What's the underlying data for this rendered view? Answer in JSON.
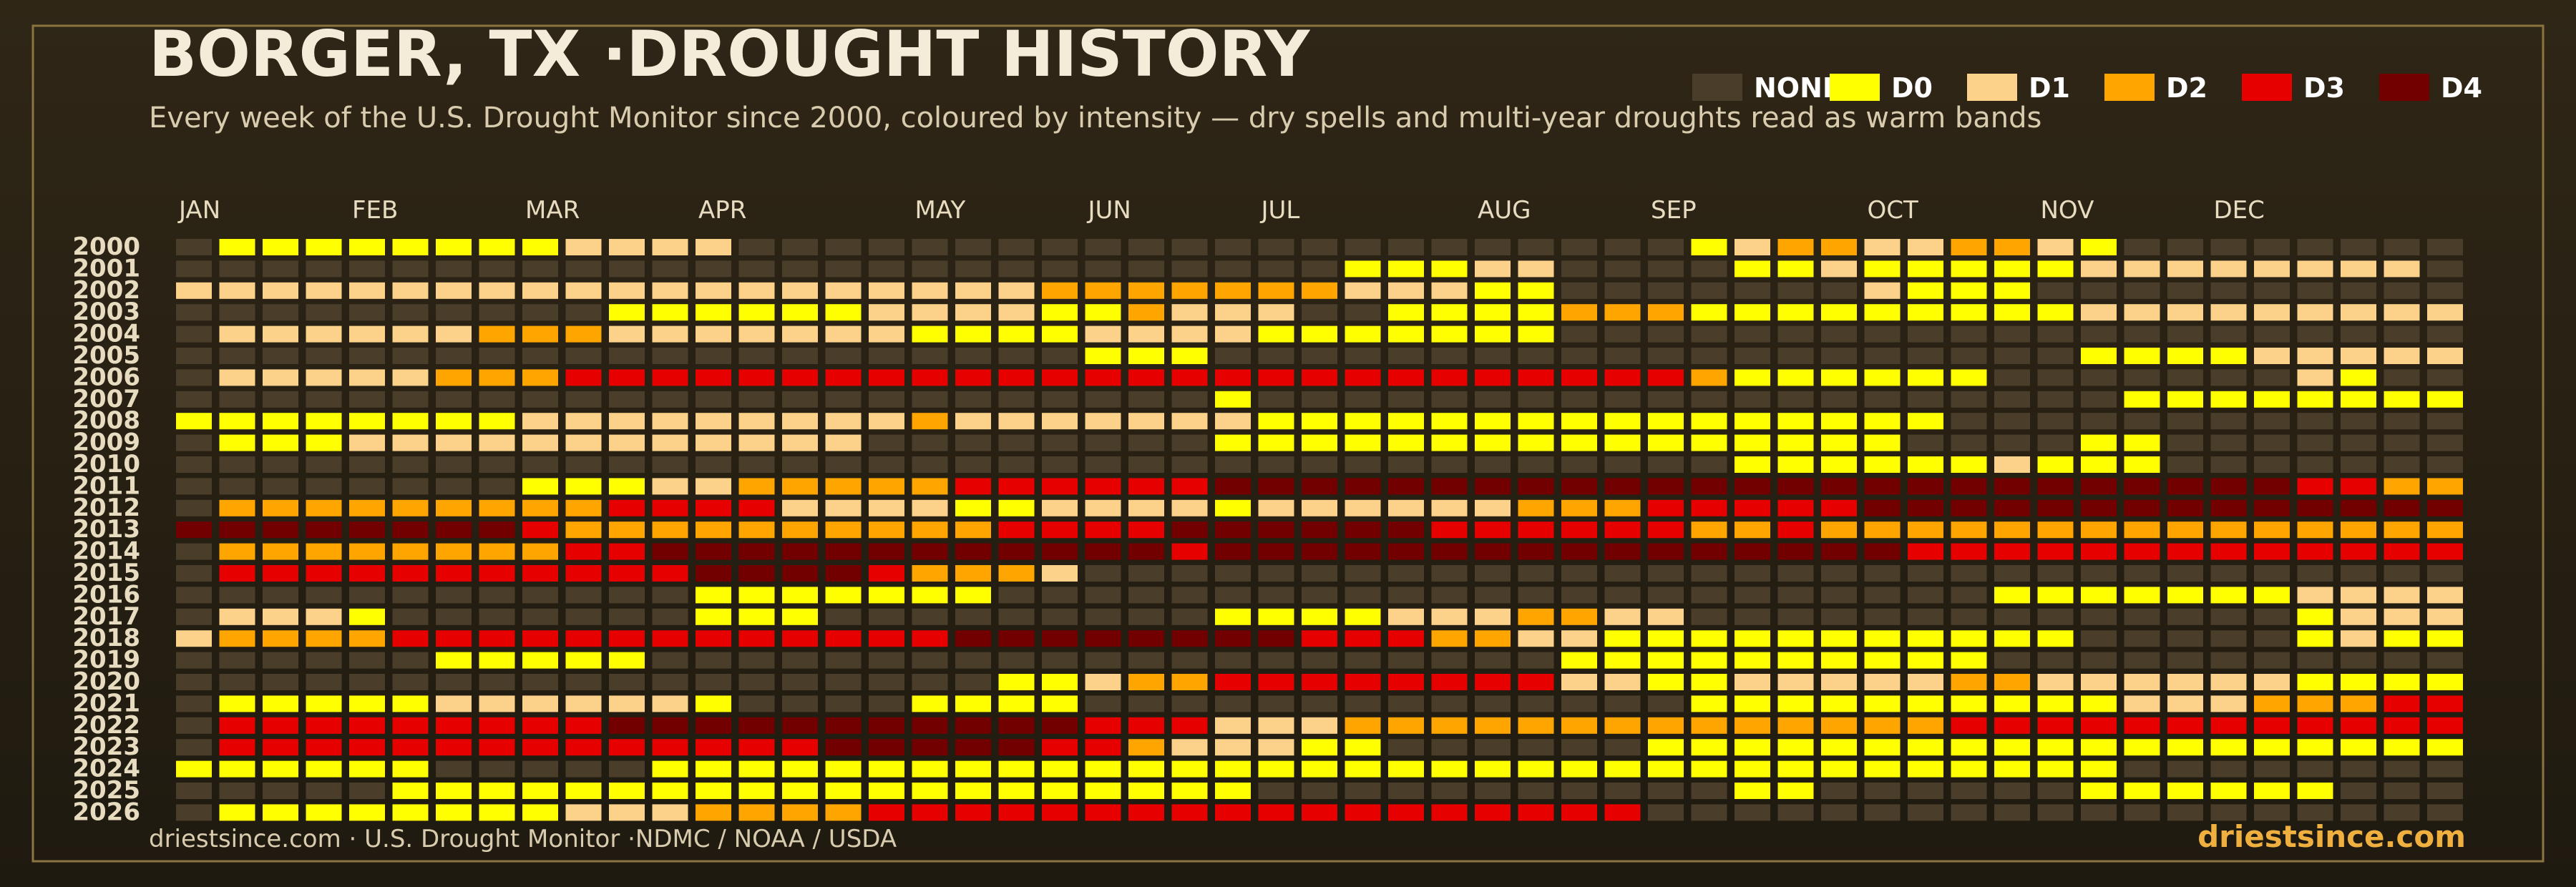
{
  "chart_data": {
    "type": "heatmap",
    "title": "BORGER, TX ·DROUGHT HISTORY",
    "subtitle": "Every week of the U.S. Drought Monitor since 2000, coloured by intensity — dry spells and multi-year droughts read as warm bands",
    "footer": "driestsince.com  · U.S. Drought Monitor ·NDMC / NOAA / USDA",
    "brand": "driestsince.com",
    "levels": [
      {
        "name": "NONE",
        "color": "#4a3e2a"
      },
      {
        "name": "D0",
        "color": "#ffff00"
      },
      {
        "name": "D1",
        "color": "#fcd28a"
      },
      {
        "name": "D2",
        "color": "#ffa500"
      },
      {
        "name": "D3",
        "color": "#e60000"
      },
      {
        "name": "D4",
        "color": "#730000"
      }
    ],
    "months": [
      "JAN",
      "FEB",
      "MAR",
      "APR",
      "MAY",
      "JUN",
      "JUL",
      "AUG",
      "SEP",
      "OCT",
      "NOV",
      "DEC"
    ],
    "years": [
      2000,
      2001,
      2002,
      2003,
      2004,
      2005,
      2006,
      2007,
      2008,
      2009,
      2010,
      2011,
      2012,
      2013,
      2014,
      2015,
      2016,
      2017,
      2018,
      2019,
      2020,
      2021,
      2022,
      2023,
      2024,
      2025,
      2026
    ],
    "values": [
      [
        0,
        1,
        1,
        1,
        1,
        1,
        1,
        1,
        1,
        2,
        2,
        2,
        2,
        0,
        0,
        0,
        0,
        0,
        0,
        0,
        0,
        0,
        0,
        0,
        0,
        0,
        0,
        0,
        0,
        0,
        0,
        0,
        0,
        0,
        0,
        1,
        2,
        3,
        3,
        2,
        2,
        3,
        3,
        2,
        1,
        0,
        0,
        0,
        0,
        0,
        0,
        0,
        0
      ],
      [
        0,
        0,
        0,
        0,
        0,
        0,
        0,
        0,
        0,
        0,
        0,
        0,
        0,
        0,
        0,
        0,
        0,
        0,
        0,
        0,
        0,
        0,
        0,
        0,
        0,
        0,
        0,
        1,
        1,
        1,
        2,
        2,
        0,
        0,
        0,
        0,
        1,
        1,
        2,
        1,
        1,
        1,
        1,
        1,
        2,
        2,
        2,
        2,
        2,
        2,
        2,
        2,
        0
      ],
      [
        2,
        2,
        2,
        2,
        2,
        2,
        2,
        2,
        2,
        2,
        2,
        2,
        2,
        2,
        2,
        2,
        2,
        2,
        2,
        2,
        3,
        3,
        3,
        3,
        3,
        3,
        3,
        2,
        2,
        2,
        1,
        1,
        0,
        0,
        0,
        0,
        0,
        0,
        0,
        2,
        1,
        1,
        1,
        0,
        0,
        0,
        0,
        0,
        0,
        0,
        0,
        0,
        0
      ],
      [
        0,
        0,
        0,
        0,
        0,
        0,
        0,
        0,
        0,
        0,
        1,
        1,
        1,
        1,
        1,
        1,
        2,
        2,
        2,
        2,
        1,
        1,
        3,
        2,
        2,
        2,
        0,
        0,
        1,
        1,
        1,
        1,
        3,
        3,
        3,
        1,
        1,
        1,
        1,
        1,
        1,
        1,
        1,
        1,
        2,
        2,
        2,
        2,
        2,
        2,
        2,
        2,
        2
      ],
      [
        0,
        2,
        2,
        2,
        2,
        2,
        2,
        3,
        3,
        3,
        2,
        2,
        2,
        2,
        2,
        2,
        2,
        1,
        1,
        1,
        1,
        2,
        2,
        2,
        2,
        1,
        1,
        1,
        1,
        1,
        1,
        1,
        0,
        0,
        0,
        0,
        0,
        0,
        0,
        0,
        0,
        0,
        0,
        0,
        0,
        0,
        0,
        0,
        0,
        0,
        0,
        0,
        0
      ],
      [
        0,
        0,
        0,
        0,
        0,
        0,
        0,
        0,
        0,
        0,
        0,
        0,
        0,
        0,
        0,
        0,
        0,
        0,
        0,
        0,
        0,
        1,
        1,
        1,
        0,
        0,
        0,
        0,
        0,
        0,
        0,
        0,
        0,
        0,
        0,
        0,
        0,
        0,
        0,
        0,
        0,
        0,
        0,
        0,
        1,
        1,
        1,
        1,
        2,
        2,
        2,
        2,
        2
      ],
      [
        0,
        2,
        2,
        2,
        2,
        2,
        3,
        3,
        3,
        4,
        4,
        4,
        4,
        4,
        4,
        4,
        4,
        4,
        4,
        4,
        4,
        4,
        4,
        4,
        4,
        4,
        4,
        4,
        4,
        4,
        4,
        4,
        4,
        4,
        4,
        3,
        1,
        1,
        1,
        1,
        1,
        1,
        0,
        0,
        0,
        0,
        0,
        0,
        0,
        2,
        1,
        0,
        0
      ],
      [
        0,
        0,
        0,
        0,
        0,
        0,
        0,
        0,
        0,
        0,
        0,
        0,
        0,
        0,
        0,
        0,
        0,
        0,
        0,
        0,
        0,
        0,
        0,
        0,
        1,
        0,
        0,
        0,
        0,
        0,
        0,
        0,
        0,
        0,
        0,
        0,
        0,
        0,
        0,
        0,
        0,
        0,
        0,
        0,
        0,
        1,
        1,
        1,
        1,
        1,
        1,
        1,
        1
      ],
      [
        1,
        1,
        1,
        1,
        1,
        1,
        1,
        1,
        2,
        2,
        2,
        2,
        2,
        2,
        2,
        2,
        2,
        3,
        2,
        2,
        2,
        2,
        2,
        2,
        2,
        1,
        1,
        1,
        1,
        1,
        1,
        1,
        1,
        1,
        1,
        1,
        1,
        1,
        1,
        1,
        1,
        0,
        0,
        0,
        0,
        0,
        0,
        0,
        0,
        0,
        0,
        0,
        0
      ],
      [
        0,
        1,
        1,
        1,
        2,
        2,
        2,
        2,
        2,
        2,
        2,
        2,
        2,
        2,
        2,
        2,
        0,
        0,
        0,
        0,
        0,
        0,
        0,
        0,
        1,
        1,
        1,
        1,
        1,
        1,
        1,
        1,
        1,
        1,
        1,
        1,
        1,
        1,
        1,
        1,
        0,
        0,
        0,
        0,
        1,
        1,
        0,
        0,
        0,
        0,
        0,
        0,
        0
      ],
      [
        0,
        0,
        0,
        0,
        0,
        0,
        0,
        0,
        0,
        0,
        0,
        0,
        0,
        0,
        0,
        0,
        0,
        0,
        0,
        0,
        0,
        0,
        0,
        0,
        0,
        0,
        0,
        0,
        0,
        0,
        0,
        0,
        0,
        0,
        0,
        0,
        1,
        1,
        1,
        1,
        1,
        1,
        2,
        1,
        1,
        1,
        0,
        0,
        0,
        0,
        0,
        0,
        0
      ],
      [
        0,
        0,
        0,
        0,
        0,
        0,
        0,
        0,
        1,
        1,
        1,
        2,
        2,
        3,
        3,
        3,
        3,
        3,
        4,
        4,
        4,
        4,
        4,
        4,
        5,
        5,
        5,
        5,
        5,
        5,
        5,
        5,
        5,
        5,
        5,
        5,
        5,
        5,
        5,
        5,
        5,
        5,
        5,
        5,
        5,
        5,
        5,
        5,
        5,
        4,
        4,
        3,
        3
      ],
      [
        0,
        3,
        3,
        3,
        3,
        3,
        3,
        3,
        3,
        3,
        4,
        4,
        4,
        4,
        2,
        2,
        2,
        2,
        1,
        1,
        2,
        2,
        2,
        2,
        1,
        2,
        2,
        2,
        2,
        2,
        2,
        3,
        3,
        3,
        4,
        4,
        4,
        4,
        4,
        5,
        5,
        5,
        5,
        5,
        5,
        5,
        5,
        5,
        5,
        5,
        5,
        5,
        5
      ],
      [
        5,
        5,
        5,
        5,
        5,
        5,
        5,
        5,
        4,
        3,
        3,
        3,
        3,
        3,
        3,
        3,
        3,
        3,
        3,
        4,
        4,
        4,
        4,
        5,
        5,
        5,
        5,
        5,
        5,
        4,
        4,
        4,
        4,
        4,
        4,
        3,
        3,
        4,
        3,
        3,
        3,
        3,
        3,
        3,
        3,
        3,
        3,
        3,
        3,
        3,
        3,
        3,
        3
      ],
      [
        0,
        3,
        3,
        3,
        3,
        3,
        3,
        3,
        3,
        4,
        4,
        5,
        5,
        5,
        5,
        5,
        5,
        5,
        5,
        5,
        5,
        5,
        5,
        4,
        5,
        5,
        5,
        5,
        5,
        5,
        5,
        5,
        5,
        5,
        5,
        5,
        5,
        5,
        5,
        5,
        4,
        4,
        4,
        4,
        4,
        4,
        4,
        4,
        4,
        4,
        4,
        4,
        4
      ],
      [
        0,
        4,
        4,
        4,
        4,
        4,
        4,
        4,
        4,
        4,
        4,
        4,
        5,
        5,
        5,
        5,
        4,
        3,
        3,
        3,
        2,
        0,
        0,
        0,
        0,
        0,
        0,
        0,
        0,
        0,
        0,
        0,
        0,
        0,
        0,
        0,
        0,
        0,
        0,
        0,
        0,
        0,
        0,
        0,
        0,
        0,
        0,
        0,
        0,
        0,
        0,
        0,
        0
      ],
      [
        0,
        0,
        0,
        0,
        0,
        0,
        0,
        0,
        0,
        0,
        0,
        0,
        1,
        1,
        1,
        1,
        1,
        1,
        1,
        0,
        0,
        0,
        0,
        0,
        0,
        0,
        0,
        0,
        0,
        0,
        0,
        0,
        0,
        0,
        0,
        0,
        0,
        0,
        0,
        0,
        0,
        0,
        1,
        1,
        1,
        1,
        1,
        1,
        1,
        2,
        2,
        2,
        2
      ],
      [
        0,
        2,
        2,
        2,
        1,
        0,
        0,
        0,
        0,
        0,
        0,
        0,
        1,
        1,
        1,
        0,
        0,
        0,
        0,
        0,
        0,
        0,
        0,
        0,
        1,
        1,
        1,
        1,
        2,
        2,
        2,
        3,
        3,
        2,
        2,
        0,
        0,
        0,
        0,
        0,
        0,
        0,
        0,
        0,
        0,
        0,
        0,
        0,
        0,
        1,
        2,
        2,
        2
      ],
      [
        2,
        3,
        3,
        3,
        3,
        4,
        4,
        4,
        4,
        4,
        4,
        4,
        4,
        4,
        4,
        4,
        4,
        4,
        5,
        5,
        5,
        5,
        5,
        5,
        5,
        5,
        4,
        4,
        4,
        3,
        3,
        2,
        2,
        1,
        1,
        1,
        1,
        1,
        1,
        1,
        1,
        1,
        1,
        1,
        0,
        0,
        0,
        0,
        0,
        1,
        2,
        1,
        1
      ],
      [
        0,
        0,
        0,
        0,
        0,
        0,
        1,
        1,
        1,
        1,
        1,
        0,
        0,
        0,
        0,
        0,
        0,
        0,
        0,
        0,
        0,
        0,
        0,
        0,
        0,
        0,
        0,
        0,
        0,
        0,
        0,
        0,
        1,
        1,
        1,
        1,
        1,
        1,
        1,
        1,
        1,
        1,
        0,
        0,
        0,
        0,
        0,
        0,
        0,
        0,
        0,
        0,
        0
      ],
      [
        0,
        0,
        0,
        0,
        0,
        0,
        0,
        0,
        0,
        0,
        0,
        0,
        0,
        0,
        0,
        0,
        0,
        0,
        0,
        1,
        1,
        2,
        3,
        3,
        4,
        4,
        4,
        4,
        4,
        4,
        4,
        4,
        2,
        2,
        1,
        1,
        2,
        2,
        2,
        2,
        2,
        3,
        3,
        2,
        2,
        2,
        2,
        2,
        2,
        1,
        1,
        1,
        1
      ],
      [
        0,
        1,
        1,
        1,
        1,
        1,
        2,
        2,
        2,
        2,
        2,
        2,
        1,
        0,
        0,
        0,
        0,
        1,
        1,
        1,
        1,
        0,
        0,
        0,
        0,
        0,
        0,
        0,
        0,
        0,
        0,
        0,
        0,
        0,
        0,
        1,
        1,
        1,
        1,
        1,
        1,
        1,
        1,
        1,
        1,
        2,
        2,
        2,
        3,
        3,
        3,
        4,
        4
      ],
      [
        0,
        4,
        4,
        4,
        4,
        4,
        4,
        4,
        4,
        4,
        5,
        5,
        5,
        5,
        5,
        5,
        5,
        5,
        5,
        5,
        5,
        4,
        4,
        4,
        2,
        2,
        2,
        3,
        3,
        3,
        3,
        3,
        3,
        3,
        3,
        3,
        3,
        3,
        3,
        3,
        3,
        4,
        4,
        4,
        4,
        4,
        4,
        4,
        4,
        4,
        4,
        4,
        4
      ],
      [
        0,
        4,
        4,
        4,
        4,
        4,
        4,
        4,
        4,
        4,
        4,
        4,
        4,
        4,
        4,
        5,
        5,
        5,
        5,
        5,
        4,
        4,
        3,
        2,
        2,
        2,
        1,
        1,
        0,
        0,
        0,
        0,
        0,
        0,
        1,
        1,
        1,
        1,
        1,
        1,
        1,
        1,
        1,
        1,
        1,
        1,
        1,
        1,
        1,
        1,
        1,
        1,
        1
      ],
      [
        1,
        1,
        1,
        1,
        1,
        1,
        0,
        0,
        0,
        0,
        0,
        1,
        1,
        1,
        1,
        1,
        1,
        1,
        1,
        1,
        1,
        1,
        1,
        1,
        1,
        1,
        1,
        1,
        1,
        1,
        1,
        1,
        1,
        1,
        1,
        1,
        1,
        1,
        1,
        1,
        1,
        1,
        1,
        1,
        1,
        0,
        0,
        0,
        0,
        0,
        0,
        0,
        0
      ],
      [
        0,
        0,
        0,
        0,
        0,
        1,
        1,
        1,
        1,
        1,
        1,
        1,
        1,
        1,
        1,
        1,
        1,
        1,
        1,
        1,
        1,
        1,
        1,
        1,
        1,
        0,
        0,
        0,
        0,
        0,
        0,
        0,
        0,
        0,
        0,
        0,
        1,
        1,
        0,
        0,
        0,
        0,
        0,
        0,
        1,
        1,
        1,
        1,
        1,
        1,
        0,
        0,
        0
      ],
      [
        0,
        1,
        1,
        1,
        1,
        1,
        1,
        1,
        1,
        2,
        2,
        2,
        3,
        3,
        3,
        3,
        4,
        4,
        4,
        4,
        4,
        4,
        4,
        4,
        4,
        4,
        4,
        4,
        4,
        4,
        4,
        4,
        4,
        4,
        0,
        0,
        0,
        0,
        0,
        0,
        0,
        0,
        0,
        0,
        0,
        0,
        0,
        0,
        0,
        0,
        0,
        0,
        0
      ]
    ]
  }
}
